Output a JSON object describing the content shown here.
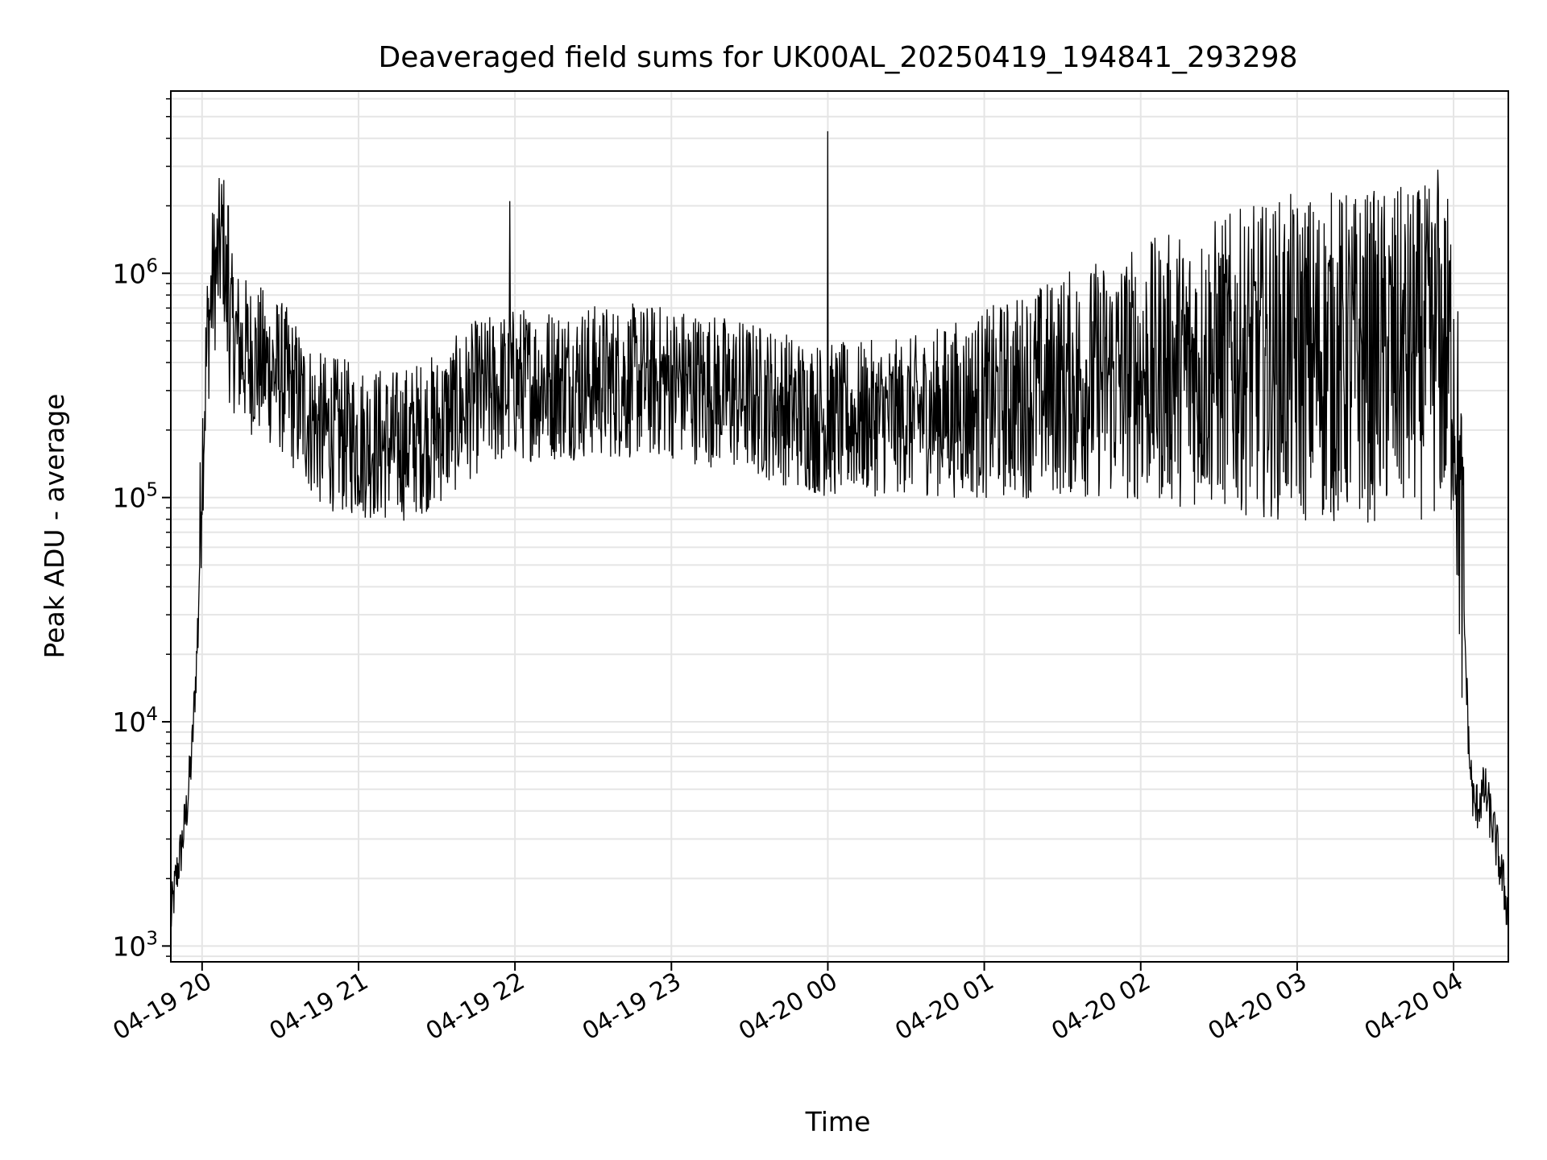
{
  "chart_data": {
    "type": "line",
    "title": "Deaveraged field sums for UK00AL_20250419_194841_293298",
    "xlabel": "Time",
    "ylabel": "Peak ADU - average",
    "yscale": "log",
    "ylim": [
      850,
      6500000
    ],
    "xlim": [
      "2025-04-19 19:48",
      "2025-04-20 04:21"
    ],
    "grid": true,
    "x_ticks": [
      {
        "label": "04-19 20",
        "t": "2025-04-19 20:00"
      },
      {
        "label": "04-19 21",
        "t": "2025-04-19 21:00"
      },
      {
        "label": "04-19 22",
        "t": "2025-04-19 22:00"
      },
      {
        "label": "04-19 23",
        "t": "2025-04-19 23:00"
      },
      {
        "label": "04-20 00",
        "t": "2025-04-20 00:00"
      },
      {
        "label": "04-20 01",
        "t": "2025-04-20 01:00"
      },
      {
        "label": "04-20 02",
        "t": "2025-04-20 02:00"
      },
      {
        "label": "04-20 03",
        "t": "2025-04-20 03:00"
      },
      {
        "label": "04-20 04",
        "t": "2025-04-20 04:00"
      }
    ],
    "y_ticks": [
      {
        "base": "10",
        "exp": "3",
        "value": 1000
      },
      {
        "base": "10",
        "exp": "4",
        "value": 10000
      },
      {
        "base": "10",
        "exp": "5",
        "value": 100000
      },
      {
        "base": "10",
        "exp": "6",
        "value": 1000000
      }
    ],
    "series": [
      {
        "color": "#000000",
        "points": [
          [
            "2025-04-19 19:48",
            1300
          ],
          [
            "2025-04-19 19:50",
            2000
          ],
          [
            "2025-04-19 19:52",
            2700
          ],
          [
            "2025-04-19 19:54",
            4000
          ],
          [
            "2025-04-19 19:56",
            7000
          ],
          [
            "2025-04-19 19:58",
            20000
          ],
          [
            "2025-04-19 20:00",
            150000
          ],
          [
            "2025-04-19 20:02",
            500000
          ],
          [
            "2025-04-19 20:04",
            900000
          ],
          [
            "2025-04-19 20:06",
            1100000
          ],
          [
            "2025-04-19 20:08",
            1500000
          ],
          [
            "2025-04-19 20:10",
            600000
          ],
          [
            "2025-04-19 20:15",
            450000
          ],
          [
            "2025-04-19 20:30",
            350000
          ],
          [
            "2025-04-19 20:45",
            200000
          ],
          [
            "2025-04-19 21:00",
            180000
          ],
          [
            "2025-04-19 21:15",
            170000
          ],
          [
            "2025-04-19 21:30",
            200000
          ],
          [
            "2025-04-19 21:45",
            280000
          ],
          [
            "2025-04-19 22:00",
            320000
          ],
          [
            "2025-04-19 22:30",
            330000
          ],
          [
            "2025-04-19 23:00",
            330000
          ],
          [
            "2025-04-19 23:30",
            280000
          ],
          [
            "2025-04-20 00:00",
            220000
          ],
          [
            "2025-04-20 00:30",
            230000
          ],
          [
            "2025-04-20 01:00",
            260000
          ],
          [
            "2025-04-20 01:30",
            320000
          ],
          [
            "2025-04-20 02:00",
            360000
          ],
          [
            "2025-04-20 02:30",
            400000
          ],
          [
            "2025-04-20 03:00",
            420000
          ],
          [
            "2025-04-20 03:30",
            430000
          ],
          [
            "2025-04-20 03:55",
            450000
          ],
          [
            "2025-04-20 04:00",
            400000
          ],
          [
            "2025-04-20 04:02",
            120000
          ],
          [
            "2025-04-20 04:04",
            30000
          ],
          [
            "2025-04-20 04:06",
            7000
          ],
          [
            "2025-04-20 04:08",
            4000
          ],
          [
            "2025-04-20 04:12",
            5000
          ],
          [
            "2025-04-20 04:16",
            3000
          ],
          [
            "2025-04-20 04:21",
            1400
          ]
        ],
        "spikes": [
          [
            "2025-04-20 00:00",
            4300000
          ],
          [
            "2025-04-19 21:58",
            2100000
          ],
          [
            "2025-04-20 03:54",
            2900000
          ],
          [
            "2025-04-19 20:10",
            2000000
          ]
        ]
      }
    ]
  }
}
